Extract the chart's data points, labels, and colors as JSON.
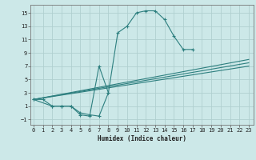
{
  "xlabel": "Humidex (Indice chaleur)",
  "bg_color": "#cce8e8",
  "line_color": "#2d7f7f",
  "grid_color": "#b0d0d0",
  "lines": [
    {
      "x": [
        0,
        2,
        3,
        4,
        5,
        6,
        7,
        8,
        9,
        10,
        11,
        12,
        13,
        14,
        15,
        16,
        17
      ],
      "y": [
        2,
        1,
        1,
        1,
        0,
        -0.3,
        -0.5,
        3,
        12,
        13,
        15,
        15.3,
        15.3,
        14,
        11.5,
        9.5,
        9.5
      ]
    },
    {
      "x": [
        0,
        1,
        2,
        3,
        4,
        5,
        6,
        7,
        8
      ],
      "y": [
        2,
        2,
        1,
        1,
        1,
        -0.3,
        -0.5,
        7,
        3
      ]
    },
    {
      "x": [
        0,
        17,
        18,
        19,
        20,
        21,
        22,
        23
      ],
      "y": [
        2,
        7.5,
        7.5,
        7.5,
        7.5,
        7.5,
        7.2,
        7.2
      ]
    },
    {
      "x": [
        0,
        17,
        18,
        19,
        20,
        21,
        22,
        23
      ],
      "y": [
        2,
        7.0,
        7.0,
        7.0,
        7.2,
        7.2,
        7.0,
        7.0
      ]
    },
    {
      "x": [
        0,
        17,
        18,
        19,
        20,
        21,
        22,
        23
      ],
      "y": [
        2,
        6.5,
        6.8,
        7.0,
        7.2,
        7.0,
        7.0,
        7.0
      ]
    }
  ],
  "lines_full": [
    {
      "x": [
        0,
        2,
        3,
        4,
        5,
        6,
        7,
        8,
        9,
        10,
        11,
        12,
        13,
        14,
        15,
        16,
        17
      ],
      "y": [
        2.0,
        1.0,
        1.0,
        1.0,
        0.0,
        -0.3,
        -0.5,
        3,
        12,
        13,
        15,
        15.3,
        15.3,
        14,
        11.5,
        9.5,
        9.5
      ]
    },
    {
      "x": [
        0,
        1,
        2,
        3,
        4,
        5,
        6,
        7,
        8
      ],
      "y": [
        2.0,
        2.0,
        1.0,
        1.0,
        1.0,
        -0.3,
        -0.5,
        7,
        3
      ]
    },
    {
      "x": [
        0,
        23
      ],
      "y": [
        2,
        8
      ]
    },
    {
      "x": [
        0,
        23
      ],
      "y": [
        2,
        7.5
      ]
    },
    {
      "x": [
        0,
        23
      ],
      "y": [
        2,
        7
      ]
    }
  ],
  "xlim": [
    -0.3,
    23.5
  ],
  "ylim": [
    -1.8,
    16.2
  ],
  "yticks": [
    -1,
    1,
    3,
    5,
    7,
    9,
    11,
    13,
    15
  ],
  "xticks": [
    0,
    1,
    2,
    3,
    4,
    5,
    6,
    7,
    8,
    9,
    10,
    11,
    12,
    13,
    14,
    15,
    16,
    17,
    18,
    19,
    20,
    21,
    22,
    23
  ]
}
